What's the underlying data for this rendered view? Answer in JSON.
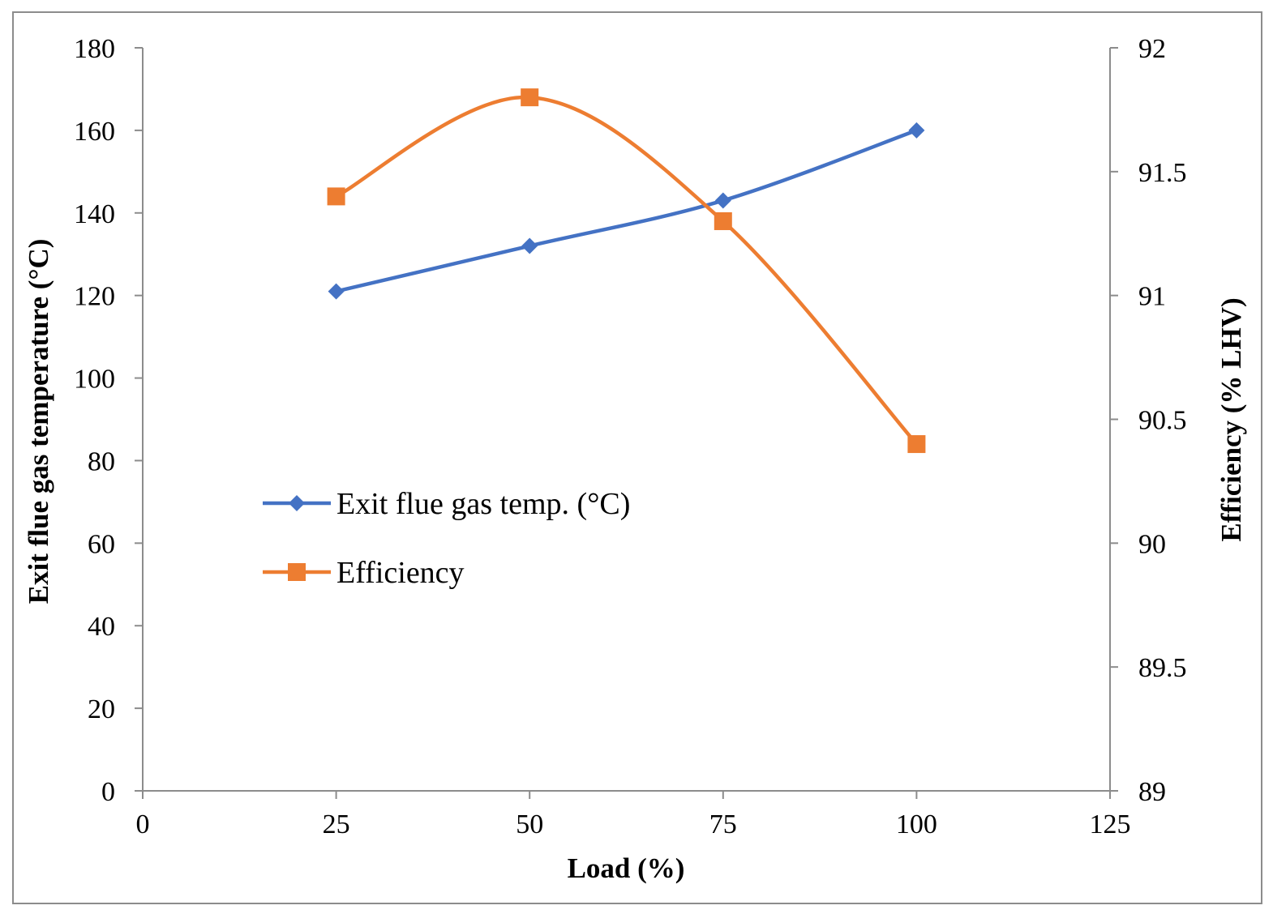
{
  "chart_data": {
    "type": "line",
    "title": "",
    "xlabel": "Load (%)",
    "ylabel": "Exit flue gas temperature (°C)",
    "y2label": "Efficiency (%  LHV)",
    "xlim": [
      0,
      125
    ],
    "ylim": [
      0,
      180
    ],
    "y2lim": [
      89,
      92
    ],
    "xticks": [
      "0",
      "25",
      "50",
      "75",
      "100",
      "125"
    ],
    "yticks": [
      "0",
      "20",
      "40",
      "60",
      "80",
      "100",
      "120",
      "140",
      "160",
      "180"
    ],
    "y2ticks": [
      "89",
      "89.5",
      "90",
      "90.5",
      "91",
      "91.5",
      "92"
    ],
    "grid": false,
    "legend_position": "center-left",
    "series": [
      {
        "name": "Exit flue gas temp. (°C)",
        "axis": "left",
        "color": "#4472C4",
        "marker": "diamond",
        "x": [
          25,
          50,
          75,
          100
        ],
        "values": [
          121,
          132,
          143,
          160
        ]
      },
      {
        "name": "Efficiency",
        "axis": "right",
        "color": "#ED7D31",
        "marker": "square",
        "x": [
          25,
          50,
          75,
          100
        ],
        "values": [
          91.4,
          91.8,
          91.3,
          90.4
        ]
      }
    ]
  }
}
